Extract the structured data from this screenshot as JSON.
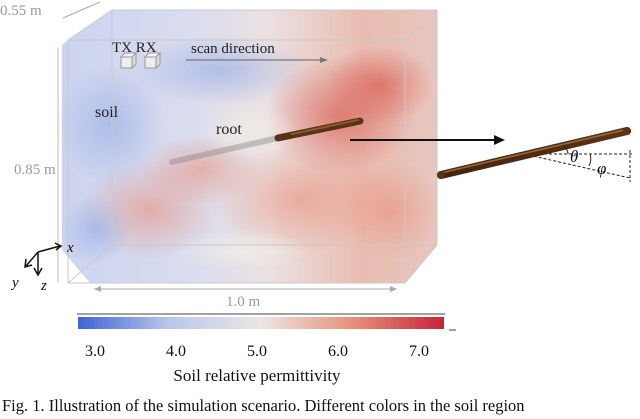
{
  "dimensions": {
    "depth": "0.55 m",
    "height": "0.85 m",
    "width": "1.0 m"
  },
  "labels": {
    "tx_rx": "TX RX",
    "scan_direction": "scan direction",
    "soil": "soil",
    "root": "root"
  },
  "angles": {
    "theta": "θ",
    "phi": "φ"
  },
  "axes": {
    "x": "x",
    "y": "y",
    "z": "z"
  },
  "colorbar": {
    "ticks": [
      "3.0",
      "4.0",
      "5.0",
      "6.0",
      "7.0"
    ],
    "label": "Soil relative permittivity",
    "colors": [
      "#3f62d6",
      "#b9c8ea",
      "#ece6e4",
      "#e6907c",
      "#c8223a"
    ]
  },
  "caption": "Fig. 1. Illustration of the simulation scenario. Different colors in the soil region"
}
